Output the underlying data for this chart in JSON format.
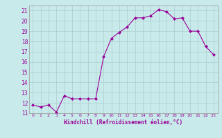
{
  "x": [
    0,
    1,
    2,
    3,
    4,
    5,
    6,
    7,
    8,
    9,
    10,
    11,
    12,
    13,
    14,
    15,
    16,
    17,
    18,
    19,
    20,
    21,
    22,
    23
  ],
  "y": [
    11.8,
    11.6,
    11.8,
    11.1,
    12.7,
    12.4,
    12.4,
    12.4,
    12.4,
    16.5,
    18.3,
    18.9,
    19.4,
    20.3,
    20.3,
    20.5,
    21.1,
    20.9,
    20.2,
    20.3,
    19.0,
    19.0,
    17.5,
    16.7
  ],
  "line_color": "#990099",
  "marker": "D",
  "marker_size": 2.0,
  "background_color": "#c8eaea",
  "grid_color": "#aacccc",
  "xlabel": "Windchill (Refroidissement éolien,°C)",
  "xlabel_color": "#990099",
  "tick_color": "#990099",
  "ylim": [
    11,
    21.5
  ],
  "yticks": [
    11,
    12,
    13,
    14,
    15,
    16,
    17,
    18,
    19,
    20,
    21
  ],
  "xlim": [
    -0.5,
    23.5
  ],
  "xticks": [
    0,
    1,
    2,
    3,
    4,
    5,
    6,
    7,
    8,
    9,
    10,
    11,
    12,
    13,
    14,
    15,
    16,
    17,
    18,
    19,
    20,
    21,
    22,
    23
  ]
}
